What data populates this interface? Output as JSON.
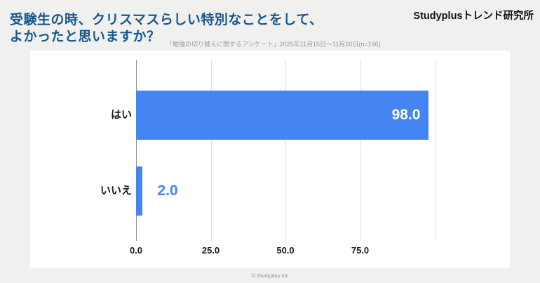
{
  "header": {
    "title": "受験生の時、クリスマスらしい特別なことをして、\nよかったと思いますか？",
    "subtitle": "「勉強の切り替えに関するアンケート」2025年11月15日～11月20日(n=196)",
    "brand": "Studyplusトレンド研究所"
  },
  "footer": {
    "copyright": "© Studyplus Inc"
  },
  "colors": {
    "title": "#17578e",
    "bar": "#4484f3",
    "background": "#f0f0ef",
    "value_inside": "#ffffff",
    "gridline": "#dfdfdf",
    "zero_axis": "#8f8f8f"
  },
  "chart_data": {
    "type": "bar",
    "orientation": "horizontal",
    "title": "受験生の時、クリスマスらしい特別なことをして、よかったと思いますか？",
    "subtitle": "「勉強の切り替えに関するアンケート」2025年11月15日～11月20日(n=196)",
    "categories": [
      "はい",
      "いいえ"
    ],
    "values": [
      98.0,
      2.0
    ],
    "value_labels": [
      "98.0",
      "2.0"
    ],
    "xlabel": "",
    "ylabel": "",
    "xlim": [
      0,
      100
    ],
    "xticks": [
      0,
      25,
      50,
      75
    ],
    "xtick_labels": [
      "0.0",
      "25.0",
      "50.0",
      "75.0"
    ],
    "gridlines_at": [
      0,
      25,
      50,
      75,
      100
    ],
    "grid": true,
    "legend": "none",
    "bar_color": "#4484f3"
  }
}
